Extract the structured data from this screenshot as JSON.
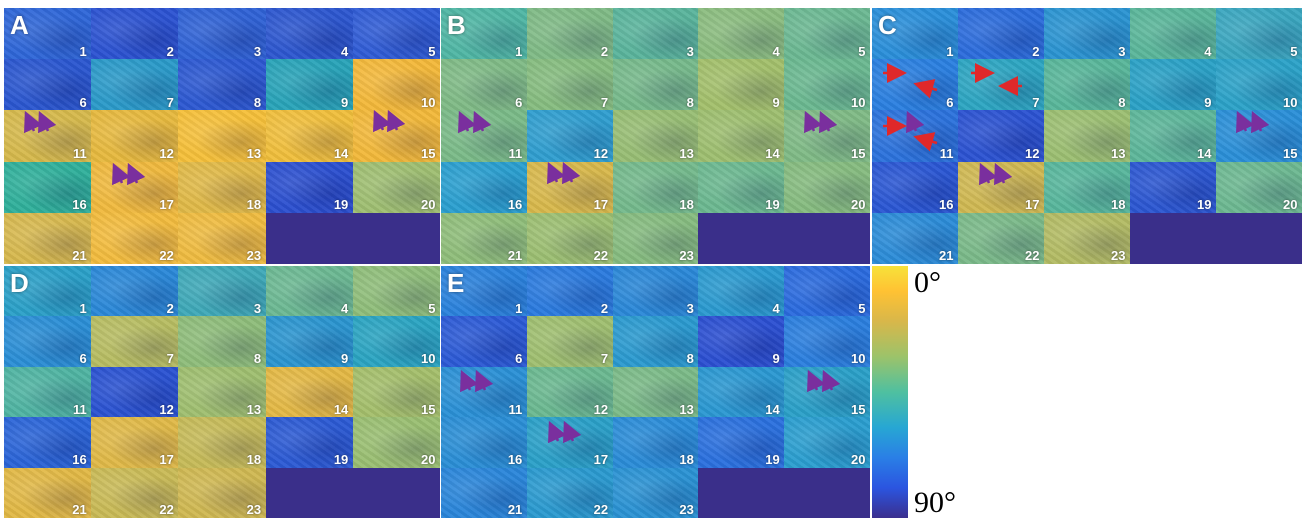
{
  "colorbar": {
    "top_label": "0°",
    "bottom_label": "90°",
    "stops": [
      "#f7e23a",
      "#ffc233",
      "#d8b74a",
      "#9cc36a",
      "#4fc0a0",
      "#27a7d3",
      "#2a7fe6",
      "#2b55e0",
      "#3b2f8e"
    ]
  },
  "empty_color": "#3a2f8a",
  "arrow_colors": {
    "purple": "#7a2f9e",
    "red": "#e0282a"
  },
  "panels": [
    {
      "label": "A",
      "tiles": [
        {
          "n": "1",
          "c": "#2e66d8"
        },
        {
          "n": "2",
          "c": "#2b52d2"
        },
        {
          "n": "3",
          "c": "#2f62d6"
        },
        {
          "n": "4",
          "c": "#2c56d0"
        },
        {
          "n": "5",
          "c": "#2f5cd6"
        },
        {
          "n": "6",
          "c": "#2a56d0"
        },
        {
          "n": "7",
          "c": "#2a9ac9"
        },
        {
          "n": "8",
          "c": "#2c58d2"
        },
        {
          "n": "9",
          "c": "#28a3b8"
        },
        {
          "n": "10",
          "c": "#f3b83a"
        },
        {
          "n": "11",
          "c": "#d6b94c"
        },
        {
          "n": "12",
          "c": "#e7b93e"
        },
        {
          "n": "13",
          "c": "#f5c03a"
        },
        {
          "n": "14",
          "c": "#f0bf3c"
        },
        {
          "n": "15",
          "c": "#f2b83a"
        },
        {
          "n": "16",
          "c": "#2fb09b"
        },
        {
          "n": "17",
          "c": "#f0b93e"
        },
        {
          "n": "18",
          "c": "#e0b948"
        },
        {
          "n": "19",
          "c": "#2b4fd0"
        },
        {
          "n": "20",
          "c": "#9fbf72"
        },
        {
          "n": "21",
          "c": "#d7b84e"
        },
        {
          "n": "22",
          "c": "#f2bc3e"
        },
        {
          "n": "23",
          "c": "#efbc40"
        }
      ]
    },
    {
      "label": "B",
      "tiles": [
        {
          "n": "1",
          "c": "#4fb6a4"
        },
        {
          "n": "2",
          "c": "#7fbb86"
        },
        {
          "n": "3",
          "c": "#5ab49c"
        },
        {
          "n": "4",
          "c": "#8bbd7f"
        },
        {
          "n": "5",
          "c": "#6bb892"
        },
        {
          "n": "6",
          "c": "#7fbb86"
        },
        {
          "n": "7",
          "c": "#86bd80"
        },
        {
          "n": "8",
          "c": "#76b98b"
        },
        {
          "n": "9",
          "c": "#a3c06c"
        },
        {
          "n": "10",
          "c": "#6ab890"
        },
        {
          "n": "11",
          "c": "#7aba88"
        },
        {
          "n": "12",
          "c": "#2f9ed0"
        },
        {
          "n": "13",
          "c": "#98be74"
        },
        {
          "n": "14",
          "c": "#9ebf70"
        },
        {
          "n": "15",
          "c": "#7fbb86"
        },
        {
          "n": "16",
          "c": "#2a9fd0"
        },
        {
          "n": "17",
          "c": "#d8b84c"
        },
        {
          "n": "18",
          "c": "#74b98c"
        },
        {
          "n": "19",
          "c": "#6cb890"
        },
        {
          "n": "20",
          "c": "#86bc80"
        },
        {
          "n": "21",
          "c": "#8fbe7a"
        },
        {
          "n": "22",
          "c": "#9cbf72"
        },
        {
          "n": "23",
          "c": "#86bc80"
        }
      ]
    },
    {
      "label": "C",
      "tiles": [
        {
          "n": "1",
          "c": "#2a8fda"
        },
        {
          "n": "2",
          "c": "#2b6cdc"
        },
        {
          "n": "3",
          "c": "#2a94d2"
        },
        {
          "n": "4",
          "c": "#5ab69a"
        },
        {
          "n": "5",
          "c": "#3aa7c0"
        },
        {
          "n": "6",
          "c": "#2a7fe0"
        },
        {
          "n": "7",
          "c": "#2ca5c2"
        },
        {
          "n": "8",
          "c": "#58b69a"
        },
        {
          "n": "9",
          "c": "#2aa1c6"
        },
        {
          "n": "10",
          "c": "#2ba2c8"
        },
        {
          "n": "11",
          "c": "#2b72dc"
        },
        {
          "n": "12",
          "c": "#2b52d2"
        },
        {
          "n": "13",
          "c": "#9cbf72"
        },
        {
          "n": "14",
          "c": "#5db69a"
        },
        {
          "n": "15",
          "c": "#2a8fd8"
        },
        {
          "n": "16",
          "c": "#2a56d4"
        },
        {
          "n": "17",
          "c": "#d0b852"
        },
        {
          "n": "18",
          "c": "#57b69c"
        },
        {
          "n": "19",
          "c": "#2b56d2"
        },
        {
          "n": "20",
          "c": "#6db891"
        },
        {
          "n": "21",
          "c": "#2b8cd8"
        },
        {
          "n": "22",
          "c": "#7ab989"
        },
        {
          "n": "23",
          "c": "#b3bc64"
        }
      ]
    },
    {
      "label": "D",
      "tiles": [
        {
          "n": "1",
          "c": "#2aa0c8"
        },
        {
          "n": "2",
          "c": "#2a88d8"
        },
        {
          "n": "3",
          "c": "#3ea9b8"
        },
        {
          "n": "4",
          "c": "#6bb892"
        },
        {
          "n": "5",
          "c": "#8fbe7a"
        },
        {
          "n": "6",
          "c": "#2a8ed6"
        },
        {
          "n": "7",
          "c": "#b7bd62"
        },
        {
          "n": "8",
          "c": "#8ebd7a"
        },
        {
          "n": "9",
          "c": "#2a95d0"
        },
        {
          "n": "10",
          "c": "#2aa4c2"
        },
        {
          "n": "11",
          "c": "#4fb4a2"
        },
        {
          "n": "12",
          "c": "#2a52d2"
        },
        {
          "n": "13",
          "c": "#9fbf70"
        },
        {
          "n": "14",
          "c": "#e4b844"
        },
        {
          "n": "15",
          "c": "#a4bf6c"
        },
        {
          "n": "16",
          "c": "#2a64d8"
        },
        {
          "n": "17",
          "c": "#e0b948"
        },
        {
          "n": "18",
          "c": "#c6bb58"
        },
        {
          "n": "19",
          "c": "#2b5ad4"
        },
        {
          "n": "20",
          "c": "#9abf72"
        },
        {
          "n": "21",
          "c": "#e2b846"
        },
        {
          "n": "22",
          "c": "#c9ba56"
        },
        {
          "n": "23",
          "c": "#d0b852"
        }
      ]
    },
    {
      "label": "E",
      "tiles": [
        {
          "n": "1",
          "c": "#2a82dc"
        },
        {
          "n": "2",
          "c": "#2a7ade"
        },
        {
          "n": "3",
          "c": "#2a88d8"
        },
        {
          "n": "4",
          "c": "#2a9ad0"
        },
        {
          "n": "5",
          "c": "#2a6ade"
        },
        {
          "n": "6",
          "c": "#2b5ad6"
        },
        {
          "n": "7",
          "c": "#9fbf70"
        },
        {
          "n": "8",
          "c": "#2a9ad0"
        },
        {
          "n": "9",
          "c": "#2b4fd2"
        },
        {
          "n": "10",
          "c": "#2a7ede"
        },
        {
          "n": "11",
          "c": "#2a90d6"
        },
        {
          "n": "12",
          "c": "#6ab890"
        },
        {
          "n": "13",
          "c": "#7bba88"
        },
        {
          "n": "14",
          "c": "#2a98d2"
        },
        {
          "n": "15",
          "c": "#2aa0c8"
        },
        {
          "n": "16",
          "c": "#2a8ed6"
        },
        {
          "n": "17",
          "c": "#2aa0c8"
        },
        {
          "n": "18",
          "c": "#2a8cd8"
        },
        {
          "n": "19",
          "c": "#2a70de"
        },
        {
          "n": "20",
          "c": "#2a9ed0"
        },
        {
          "n": "21",
          "c": "#2a86da"
        },
        {
          "n": "22",
          "c": "#2a9ad0"
        },
        {
          "n": "23",
          "c": "#2a92d4"
        }
      ]
    }
  ]
}
